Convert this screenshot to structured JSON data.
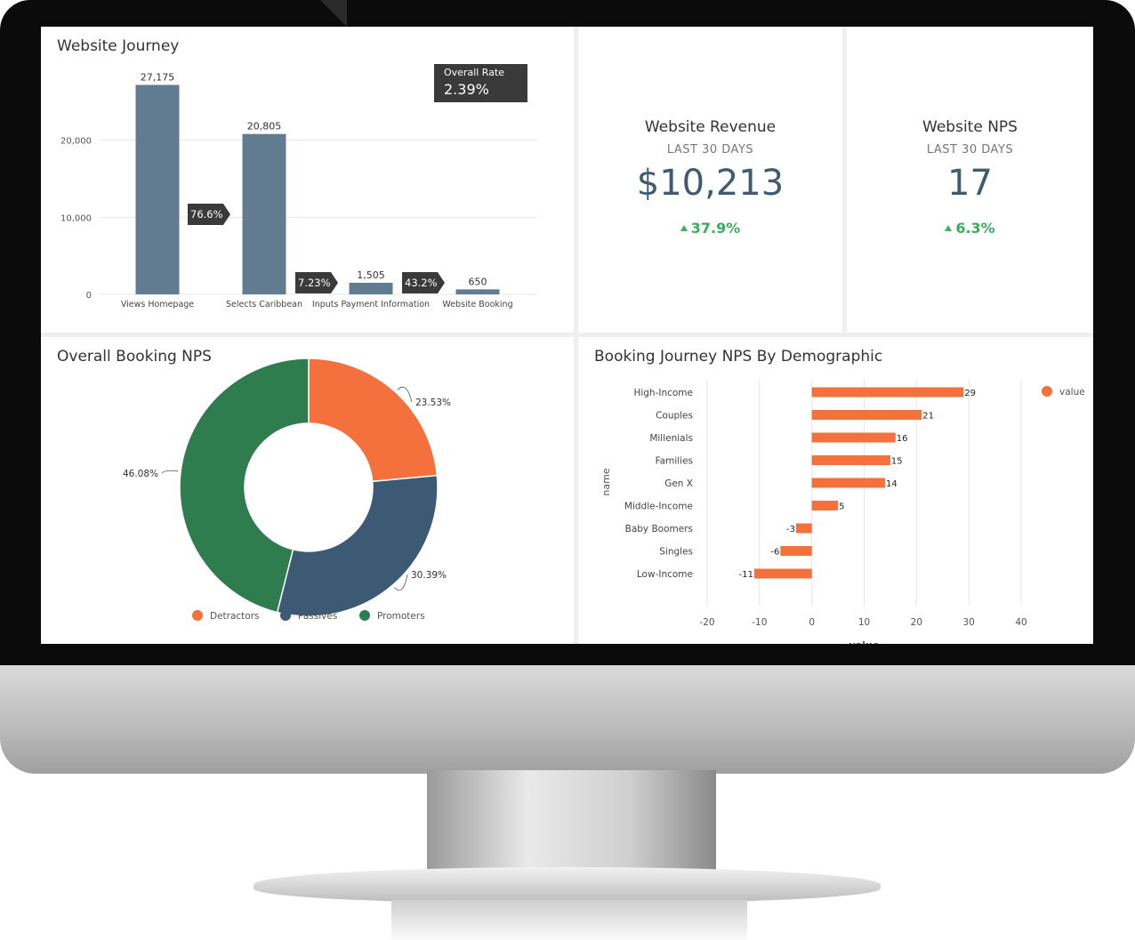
{
  "journey": {
    "title": "Website Journey",
    "overall_rate_label": "Overall Rate",
    "overall_rate_value": "2.39%",
    "conversions": [
      "76.6%",
      "7.23%",
      "43.2%"
    ]
  },
  "revenue": {
    "title": "Website Revenue",
    "period": "LAST 30 DAYS",
    "value": "$10,213",
    "change": "37.9%"
  },
  "nps": {
    "title": "Website NPS",
    "period": "LAST 30 DAYS",
    "value": "17",
    "change": "6.3%"
  },
  "booking_nps": {
    "title": "Overall Booking NPS"
  },
  "demographic_nps": {
    "title": "Booking Journey NPS By Demographic"
  },
  "colors": {
    "bar": "#617c91",
    "orange": "#f4703c",
    "navy": "#3c5a74",
    "green": "#2f7d4e",
    "up": "#35b15c"
  },
  "chart_data": [
    {
      "type": "bar",
      "title": "Website Journey",
      "categories": [
        "Views Homepage",
        "Selects Caribbean",
        "Inputs Payment Information",
        "Website Booking"
      ],
      "values": [
        27175,
        20805,
        1505,
        650
      ],
      "data_labels": [
        "27,175",
        "20,805",
        "1,505",
        "650"
      ],
      "y_ticks": [
        "0",
        "10,000",
        "20,000"
      ],
      "ylim": [
        0,
        30000
      ],
      "grid": true
    },
    {
      "type": "pie",
      "title": "Overall Booking NPS",
      "categories": [
        "Detractors",
        "Passives",
        "Promoters"
      ],
      "values": [
        23.53,
        30.39,
        46.08
      ],
      "data_labels": [
        "23.53%",
        "30.39%",
        "46.08%"
      ],
      "colors": [
        "#f4703c",
        "#3c5a74",
        "#2f7d4e"
      ],
      "legend": "bottom"
    },
    {
      "type": "bar",
      "orientation": "horizontal",
      "title": "Booking Journey NPS By Demographic",
      "categories": [
        "High-Income",
        "Couples",
        "Millenials",
        "Families",
        "Gen X",
        "Middle-Income",
        "Baby Boomers",
        "Singles",
        "Low-Income"
      ],
      "values": [
        29,
        21,
        16,
        15,
        14,
        5,
        -3,
        -6,
        -11
      ],
      "xlabel": "value",
      "ylabel": "name",
      "x_ticks": [
        "-20",
        "-10",
        "0",
        "10",
        "20",
        "30",
        "40"
      ],
      "xlim": [
        -20,
        40
      ],
      "series": [
        {
          "name": "value",
          "values": [
            29,
            21,
            16,
            15,
            14,
            5,
            -3,
            -6,
            -11
          ]
        }
      ],
      "legend": "top-right",
      "grid": true
    }
  ]
}
